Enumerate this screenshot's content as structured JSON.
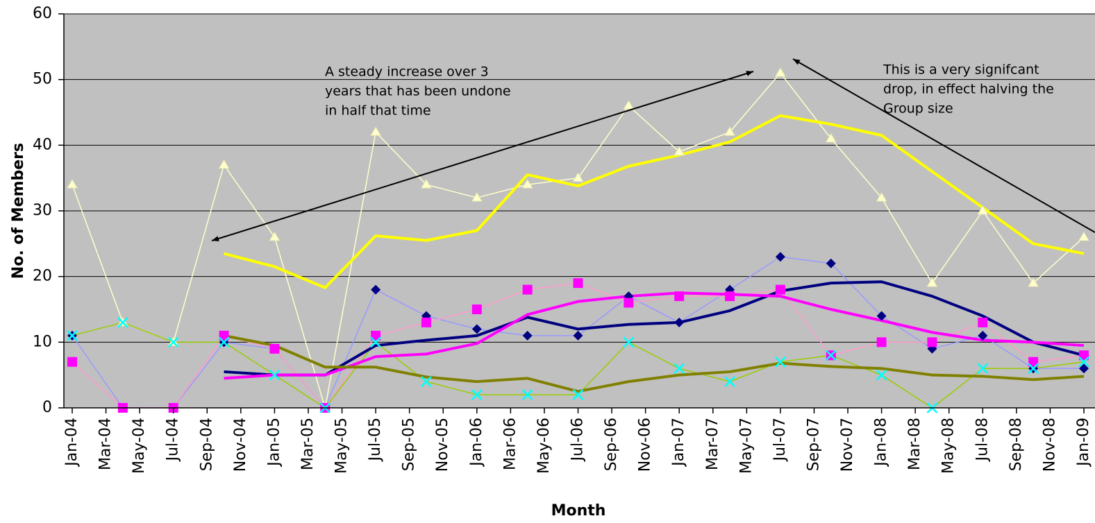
{
  "chart_data": {
    "type": "line",
    "x_label": "Month",
    "y_label": "No. of Members",
    "annotations": [
      {
        "lines": [
          "A steady increase over 3",
          "years that has been undone",
          "in half that time"
        ]
      },
      {
        "lines": [
          "This is a very signifcant",
          "drop, in effect halving the",
          "Group size"
        ]
      }
    ],
    "x": [
      "2004-01",
      "2004-04",
      "2004-07",
      "2004-10",
      "2005-01",
      "2005-04",
      "2005-07",
      "2005-10",
      "2006-01",
      "2006-04",
      "2006-07",
      "2006-10",
      "2007-01",
      "2007-04",
      "2007-07",
      "2007-10",
      "2008-01",
      "2008-04",
      "2008-07",
      "2008-10",
      "2009-01"
    ],
    "xlim": [
      "2004-01",
      "2009-01"
    ],
    "xticks": [
      {
        "value": "2004-01",
        "label": "Jan-04"
      },
      {
        "value": "2004-03",
        "label": "Mar-04"
      },
      {
        "value": "2004-05",
        "label": "May-04"
      },
      {
        "value": "2004-07",
        "label": "Jul-04"
      },
      {
        "value": "2004-09",
        "label": "Sep-04"
      },
      {
        "value": "2004-11",
        "label": "Nov-04"
      },
      {
        "value": "2005-01",
        "label": "Jan-05"
      },
      {
        "value": "2005-03",
        "label": "Mar-05"
      },
      {
        "value": "2005-05",
        "label": "May-05"
      },
      {
        "value": "2005-07",
        "label": "Jul-05"
      },
      {
        "value": "2005-09",
        "label": "Sep-05"
      },
      {
        "value": "2005-11",
        "label": "Nov-05"
      },
      {
        "value": "2006-01",
        "label": "Jan-06"
      },
      {
        "value": "2006-03",
        "label": "Mar-06"
      },
      {
        "value": "2006-05",
        "label": "May-06"
      },
      {
        "value": "2006-07",
        "label": "Jul-06"
      },
      {
        "value": "2006-09",
        "label": "Sep-06"
      },
      {
        "value": "2006-11",
        "label": "Nov-06"
      },
      {
        "value": "2007-01",
        "label": "Jan-07"
      },
      {
        "value": "2007-03",
        "label": "Mar-07"
      },
      {
        "value": "2007-05",
        "label": "May-07"
      },
      {
        "value": "2007-07",
        "label": "Jul-07"
      },
      {
        "value": "2007-09",
        "label": "Sep-07"
      },
      {
        "value": "2007-11",
        "label": "Nov-07"
      },
      {
        "value": "2008-01",
        "label": "Jan-08"
      },
      {
        "value": "2008-03",
        "label": "Mar-08"
      },
      {
        "value": "2008-05",
        "label": "May-08"
      },
      {
        "value": "2008-07",
        "label": "Jul-08"
      },
      {
        "value": "2008-09",
        "label": "Sep-08"
      },
      {
        "value": "2008-11",
        "label": "Nov-08"
      },
      {
        "value": "2009-01",
        "label": "Jan-09"
      }
    ],
    "ylim": [
      0,
      60
    ],
    "yticks": [
      0,
      10,
      20,
      30,
      40,
      50,
      60
    ],
    "grid": true,
    "background": "#c0c0c0",
    "series": [
      {
        "color": "#ffffcc",
        "line_color": "#ffffcc",
        "marker": "triangle",
        "line_width": 1.5,
        "values": [
          34,
          13,
          10,
          37,
          26,
          0,
          42,
          34,
          32,
          34,
          35,
          46,
          39,
          42,
          51,
          41,
          32,
          19,
          30,
          19,
          26
        ]
      },
      {
        "color": "#9999ff",
        "line_color": "#9999ff",
        "marker": "diamond",
        "marker_color": "#000080",
        "line_width": 1.5,
        "values": [
          11,
          0,
          0,
          10,
          9,
          0,
          18,
          14,
          12,
          11,
          11,
          17,
          13,
          18,
          23,
          22,
          14,
          9,
          11,
          6,
          6
        ]
      },
      {
        "color": "#ff99cc",
        "line_color": "#ff99cc",
        "marker": "square",
        "marker_color": "#ff00ff",
        "line_width": 1.5,
        "values": [
          7,
          0,
          0,
          11,
          9,
          0,
          11,
          13,
          15,
          18,
          19,
          16,
          17,
          17,
          18,
          8,
          10,
          10,
          13,
          7,
          8
        ]
      },
      {
        "color": "#99cc00",
        "line_color": "#99cc00",
        "marker": "x",
        "marker_color": "#00ffff",
        "line_width": 1.5,
        "values": [
          11,
          13,
          10,
          10,
          5,
          0,
          10,
          4,
          2,
          2,
          2,
          10,
          6,
          4,
          7,
          8,
          5,
          0,
          6,
          6,
          7
        ]
      },
      {
        "color": "#ffff00",
        "line_color": "#ffff00",
        "line_width": 4,
        "values": [
          null,
          null,
          null,
          23.5,
          21.5,
          18.3,
          26.2,
          25.5,
          27,
          35.5,
          33.8,
          36.8,
          38.5,
          40.5,
          44.5,
          43.2,
          41.5,
          36,
          30.5,
          25,
          23.5
        ]
      },
      {
        "color": "#000080",
        "line_color": "#000080",
        "line_width": 4,
        "values": [
          null,
          null,
          null,
          5.5,
          5,
          5,
          9.5,
          10.3,
          11,
          13.8,
          12,
          12.7,
          13,
          14.8,
          17.8,
          19,
          19.2,
          17,
          14,
          10,
          8
        ]
      },
      {
        "color": "#ff00ff",
        "line_color": "#ff00ff",
        "line_width": 4,
        "values": [
          null,
          null,
          null,
          4.5,
          5,
          5,
          7.8,
          8.2,
          9.8,
          14.2,
          16.2,
          17,
          17.5,
          17.3,
          17,
          15,
          13.3,
          11.5,
          10.3,
          10,
          9.5
        ]
      },
      {
        "color": "#808000",
        "line_color": "#808000",
        "line_width": 4,
        "values": [
          null,
          null,
          null,
          11,
          9.5,
          6.2,
          6.2,
          4.7,
          4,
          4.5,
          2.5,
          4,
          5,
          5.5,
          6.8,
          6.3,
          6,
          5,
          4.8,
          4.3,
          4.8
        ]
      }
    ]
  }
}
